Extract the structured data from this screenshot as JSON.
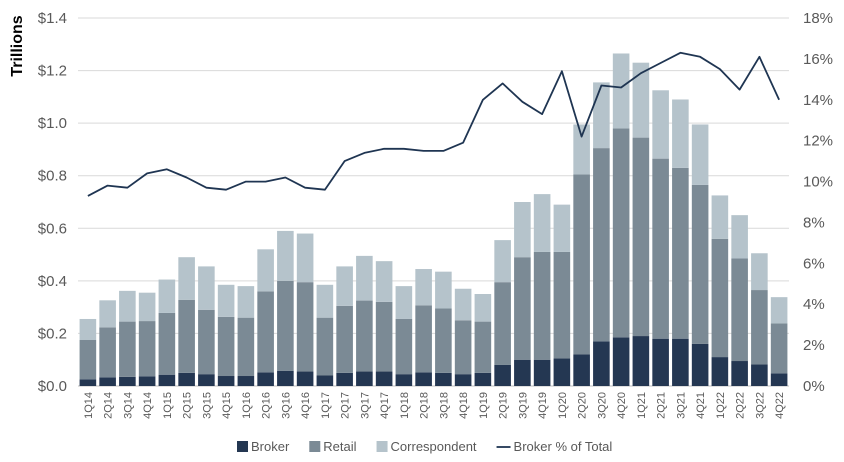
{
  "chart_data": {
    "type": "bar",
    "stacked": true,
    "ylabel": "Trillions",
    "y_ticks": [
      "$0.0",
      "$0.2",
      "$0.4",
      "$0.6",
      "$0.8",
      "$1.0",
      "$1.2",
      "$1.4"
    ],
    "y2_ticks": [
      "0%",
      "2%",
      "4%",
      "6%",
      "8%",
      "10%",
      "12%",
      "14%",
      "16%",
      "18%"
    ],
    "ylim": [
      0,
      1.4
    ],
    "y2lim": [
      0,
      18
    ],
    "grid": "horizontal",
    "legend_position": "bottom",
    "categories": [
      "1Q14",
      "2Q14",
      "3Q14",
      "4Q14",
      "1Q15",
      "2Q15",
      "3Q15",
      "4Q15",
      "1Q16",
      "2Q16",
      "3Q16",
      "4Q16",
      "1Q17",
      "2Q17",
      "3Q17",
      "4Q17",
      "1Q18",
      "2Q18",
      "3Q18",
      "4Q18",
      "1Q19",
      "2Q19",
      "3Q19",
      "4Q19",
      "1Q20",
      "2Q20",
      "3Q20",
      "4Q20",
      "1Q21",
      "2Q21",
      "3Q21",
      "4Q21",
      "1Q22",
      "2Q22",
      "3Q22",
      "4Q22"
    ],
    "series": [
      {
        "name": "Broker",
        "color": "#243752",
        "axis": "left",
        "values": [
          0.025,
          0.033,
          0.035,
          0.037,
          0.043,
          0.05,
          0.045,
          0.038,
          0.038,
          0.052,
          0.058,
          0.055,
          0.04,
          0.05,
          0.055,
          0.055,
          0.045,
          0.052,
          0.05,
          0.045,
          0.05,
          0.08,
          0.1,
          0.1,
          0.105,
          0.12,
          0.17,
          0.185,
          0.19,
          0.18,
          0.18,
          0.16,
          0.11,
          0.095,
          0.082,
          0.048
        ]
      },
      {
        "name": "Retail",
        "color": "#7b8a95",
        "axis": "left",
        "values": [
          0.15,
          0.19,
          0.21,
          0.21,
          0.235,
          0.278,
          0.245,
          0.225,
          0.222,
          0.308,
          0.342,
          0.34,
          0.22,
          0.255,
          0.27,
          0.265,
          0.21,
          0.255,
          0.245,
          0.205,
          0.195,
          0.315,
          0.39,
          0.41,
          0.405,
          0.685,
          0.735,
          0.795,
          0.755,
          0.685,
          0.65,
          0.605,
          0.45,
          0.39,
          0.283,
          0.19
        ]
      },
      {
        "name": "Correspondent",
        "color": "#b5c3cb",
        "axis": "left",
        "values": [
          0.08,
          0.103,
          0.117,
          0.108,
          0.127,
          0.162,
          0.165,
          0.122,
          0.12,
          0.16,
          0.19,
          0.185,
          0.125,
          0.15,
          0.17,
          0.155,
          0.125,
          0.138,
          0.14,
          0.12,
          0.105,
          0.16,
          0.21,
          0.22,
          0.18,
          0.19,
          0.25,
          0.285,
          0.285,
          0.26,
          0.26,
          0.23,
          0.165,
          0.165,
          0.14,
          0.1
        ]
      },
      {
        "name": "Broker % of Total",
        "type": "line",
        "color": "#1f3552",
        "axis": "right",
        "unit": "%",
        "values": [
          9.3,
          9.8,
          9.7,
          10.4,
          10.6,
          10.2,
          9.7,
          9.6,
          10.0,
          10.0,
          10.2,
          9.7,
          9.6,
          11.0,
          11.4,
          11.6,
          11.6,
          11.5,
          11.5,
          11.9,
          14.0,
          14.8,
          13.9,
          13.3,
          15.4,
          12.2,
          14.7,
          14.6,
          15.3,
          15.8,
          16.3,
          16.1,
          15.5,
          14.5,
          16.1,
          14.0
        ]
      }
    ]
  },
  "legend": [
    {
      "label": "Broker",
      "kind": "swatch",
      "color": "#243752"
    },
    {
      "label": "Retail",
      "kind": "swatch",
      "color": "#7b8a95"
    },
    {
      "label": "Correspondent",
      "kind": "swatch",
      "color": "#b5c3cb"
    },
    {
      "label": "Broker % of Total",
      "kind": "line",
      "color": "#1f3552"
    }
  ]
}
